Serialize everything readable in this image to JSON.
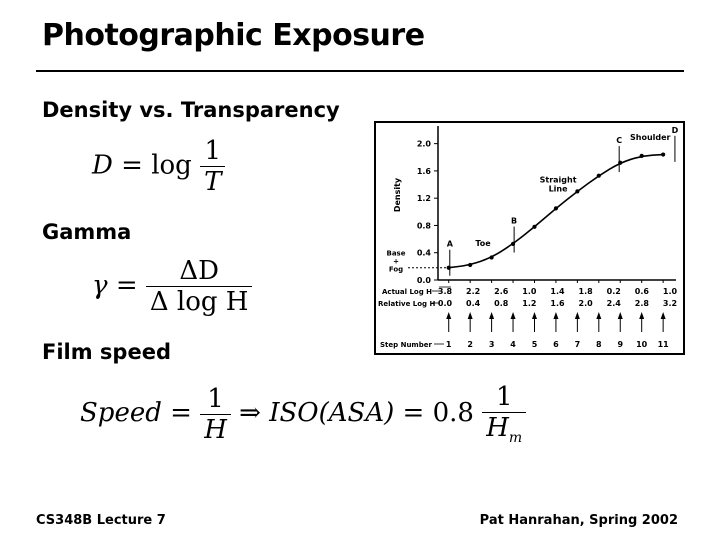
{
  "slide": {
    "title": "Photographic Exposure",
    "section1_heading": "Density vs. Transparency",
    "section2_heading": "Gamma",
    "section3_heading": "Film speed",
    "footer_left": "CS348B Lecture 7",
    "footer_right": "Pat Hanrahan, Spring 2002"
  },
  "equations": {
    "density": {
      "lhs": "D",
      "eq": "=",
      "fn": "log",
      "num": "1",
      "den": "T"
    },
    "gamma": {
      "lhs": "γ",
      "eq": "=",
      "num": "ΔD",
      "den": "Δ log H"
    },
    "speed": {
      "lhs": "Speed",
      "eq": "=",
      "num": "1",
      "den": "H",
      "implies": "⇒",
      "rhs": "ISO(ASA)",
      "eq2": "=",
      "coef": "0.8",
      "num2": "1",
      "den2": "H",
      "den2_sub": "m"
    }
  },
  "chart_data": {
    "type": "line",
    "ylabel": "Density",
    "y_ticks": [
      "0.0",
      "0.4",
      "0.8",
      "1.2",
      "1.6",
      "2.0"
    ],
    "ylim": [
      0,
      2.2
    ],
    "xlim": [
      0.5,
      11.6
    ],
    "actual_log_h_label": "Actual Log H",
    "actual_log_h": [
      "3.8",
      "2.2",
      "2.6",
      "1.0",
      "1.4",
      "1.8",
      "0.2",
      "0.6",
      "1.0"
    ],
    "relative_log_h_label": "Relative Log H",
    "relative_log_h": [
      "0.0",
      "0.4",
      "0.8",
      "1.2",
      "1.6",
      "2.0",
      "2.4",
      "2.8",
      "3.2"
    ],
    "step_label": "Step Number",
    "steps": [
      "1",
      "2",
      "3",
      "4",
      "5",
      "6",
      "7",
      "8",
      "9",
      "10",
      "11"
    ],
    "base_fog_label": "Base + Fog",
    "base_fog_lines": [
      "Base",
      "+",
      "Fog"
    ],
    "curve": [
      {
        "x": 1,
        "y": 0.18
      },
      {
        "x": 2,
        "y": 0.22
      },
      {
        "x": 3,
        "y": 0.33
      },
      {
        "x": 4,
        "y": 0.53
      },
      {
        "x": 5,
        "y": 0.78
      },
      {
        "x": 6,
        "y": 1.05
      },
      {
        "x": 7,
        "y": 1.3
      },
      {
        "x": 8,
        "y": 1.53
      },
      {
        "x": 9,
        "y": 1.72
      },
      {
        "x": 10,
        "y": 1.82
      },
      {
        "x": 11,
        "y": 1.84
      }
    ],
    "markers": [
      {
        "label": "A",
        "x": 1.05,
        "y": 0.18
      },
      {
        "label": "B",
        "x": 4.05,
        "y": 0.52
      },
      {
        "label": "C",
        "x": 8.95,
        "y": 1.7
      },
      {
        "label": "D",
        "x": 11.55,
        "y": 1.85
      }
    ],
    "annotations": [
      {
        "text": "Toe",
        "x": 2.6,
        "y": 0.5
      },
      {
        "text": "Straight",
        "x": 6.1,
        "y": 1.43
      },
      {
        "text": "Line",
        "x": 6.1,
        "y": 1.3
      },
      {
        "text": "Shoulder",
        "x": 10.4,
        "y": 2.05
      }
    ]
  }
}
